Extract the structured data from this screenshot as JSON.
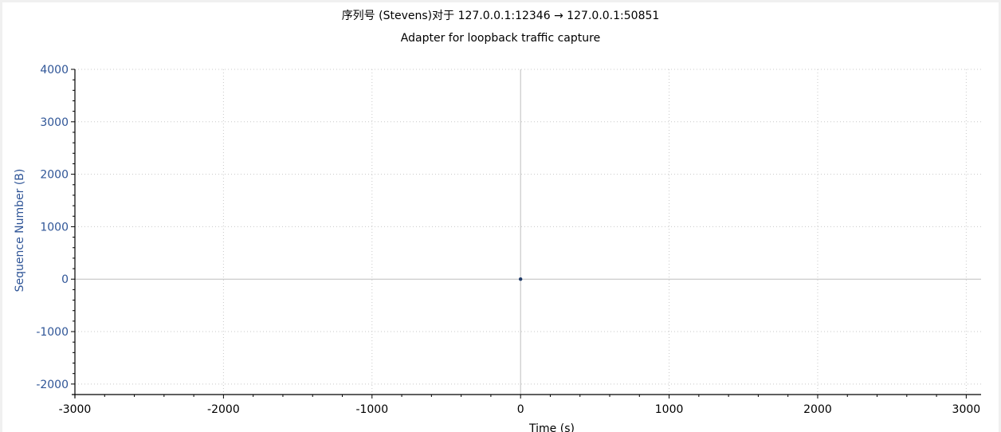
{
  "title": "序列号 (Stevens)对于 127.0.0.1:12346 → 127.0.0.1:50851",
  "subtitle": "Adapter for loopback traffic capture",
  "colors": {
    "axis_label": "#2f5597",
    "tick_label_y": "#2f5597",
    "tick_label_x": "#000000",
    "grid": "#c8c8c8",
    "zero_line": "#bdbdbd",
    "point": "#1f3a68"
  },
  "chart_data": {
    "type": "scatter",
    "xlabel": "Time (s)",
    "ylabel": "Sequence Number (B)",
    "xlim": [
      -3000,
      3100
    ],
    "ylim": [
      -2200,
      4000
    ],
    "x_ticks": [
      -3000,
      -2000,
      -1000,
      0,
      1000,
      2000,
      3000
    ],
    "x_tick_labels": [
      "-3000",
      "-2000",
      "-1000",
      "0",
      "1000",
      "2000",
      "3000"
    ],
    "y_ticks": [
      -2000,
      -1000,
      0,
      1000,
      2000,
      3000,
      4000
    ],
    "y_tick_labels": [
      "-2000",
      "-1000",
      "0",
      "1000",
      "2000",
      "3000",
      "4000"
    ],
    "grid": true,
    "points": [
      {
        "x": 0,
        "y": 0
      }
    ]
  }
}
